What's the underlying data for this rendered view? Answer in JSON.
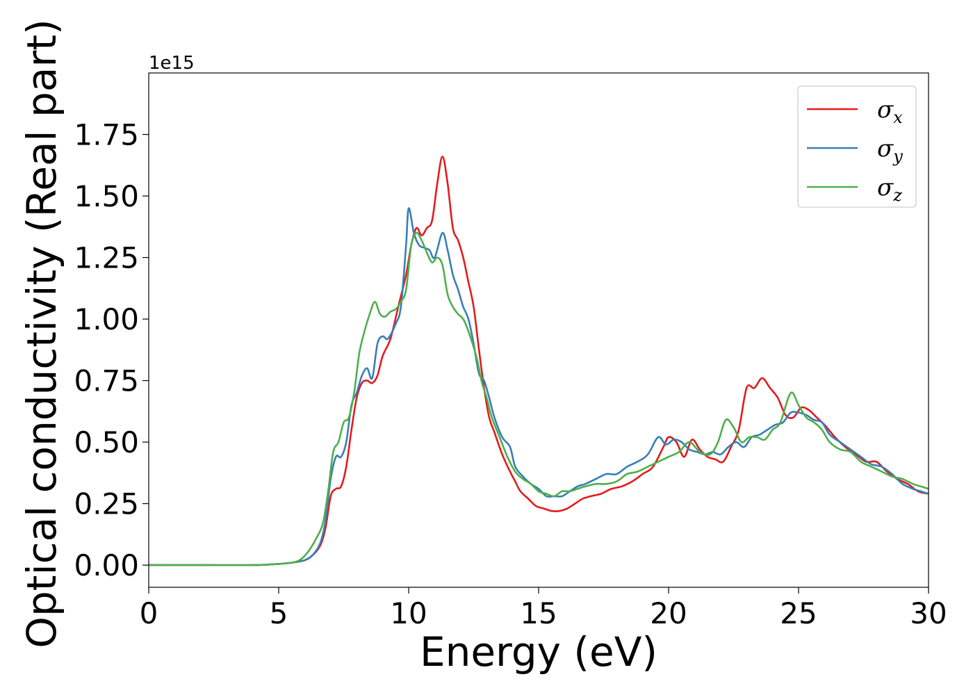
{
  "chart_data": {
    "type": "line",
    "xlabel": "Energy (eV)",
    "ylabel": "Optical conductivity (Real part)",
    "offset_text": "1e15",
    "xlim": [
      0,
      30
    ],
    "ylim": [
      -0.09,
      2.0
    ],
    "xticks": [
      0,
      5,
      10,
      15,
      20,
      25,
      30
    ],
    "xtick_labels": [
      "0",
      "5",
      "10",
      "15",
      "20",
      "25",
      "30"
    ],
    "yticks": [
      0,
      0.25,
      0.5,
      0.75,
      1.0,
      1.25,
      1.5,
      1.75
    ],
    "ytick_labels": [
      "0.00",
      "0.25",
      "0.50",
      "0.75",
      "1.00",
      "1.25",
      "1.50",
      "1.75"
    ],
    "grid": false,
    "legend_position": "top-right",
    "series": [
      {
        "name": "σ",
        "subscript": "x",
        "color": "#e41a1c",
        "points": [
          [
            0,
            0
          ],
          [
            2,
            0
          ],
          [
            4,
            0
          ],
          [
            5,
            0.005
          ],
          [
            5.5,
            0.01
          ],
          [
            6,
            0.02
          ],
          [
            6.3,
            0.04
          ],
          [
            6.6,
            0.08
          ],
          [
            6.8,
            0.15
          ],
          [
            7.0,
            0.28
          ],
          [
            7.2,
            0.31
          ],
          [
            7.4,
            0.32
          ],
          [
            7.6,
            0.4
          ],
          [
            7.8,
            0.55
          ],
          [
            8.0,
            0.68
          ],
          [
            8.2,
            0.74
          ],
          [
            8.4,
            0.75
          ],
          [
            8.6,
            0.74
          ],
          [
            8.8,
            0.77
          ],
          [
            9.0,
            0.85
          ],
          [
            9.3,
            0.92
          ],
          [
            9.6,
            1.05
          ],
          [
            9.9,
            1.18
          ],
          [
            10.1,
            1.3
          ],
          [
            10.3,
            1.37
          ],
          [
            10.5,
            1.34
          ],
          [
            10.7,
            1.37
          ],
          [
            10.9,
            1.4
          ],
          [
            11.1,
            1.55
          ],
          [
            11.3,
            1.66
          ],
          [
            11.5,
            1.55
          ],
          [
            11.7,
            1.37
          ],
          [
            11.9,
            1.32
          ],
          [
            12.1,
            1.25
          ],
          [
            12.3,
            1.15
          ],
          [
            12.5,
            1.05
          ],
          [
            12.7,
            0.88
          ],
          [
            12.9,
            0.72
          ],
          [
            13.1,
            0.6
          ],
          [
            13.3,
            0.54
          ],
          [
            13.6,
            0.45
          ],
          [
            13.9,
            0.38
          ],
          [
            14.1,
            0.34
          ],
          [
            14.3,
            0.3
          ],
          [
            14.6,
            0.27
          ],
          [
            14.9,
            0.24
          ],
          [
            15.2,
            0.23
          ],
          [
            15.5,
            0.22
          ],
          [
            15.8,
            0.22
          ],
          [
            16.1,
            0.23
          ],
          [
            16.4,
            0.25
          ],
          [
            16.7,
            0.27
          ],
          [
            17.0,
            0.28
          ],
          [
            17.4,
            0.29
          ],
          [
            17.8,
            0.31
          ],
          [
            18.2,
            0.32
          ],
          [
            18.6,
            0.34
          ],
          [
            19.0,
            0.37
          ],
          [
            19.4,
            0.4
          ],
          [
            19.8,
            0.48
          ],
          [
            20.0,
            0.52
          ],
          [
            20.3,
            0.5
          ],
          [
            20.6,
            0.44
          ],
          [
            20.9,
            0.51
          ],
          [
            21.2,
            0.47
          ],
          [
            21.5,
            0.44
          ],
          [
            21.8,
            0.43
          ],
          [
            22.1,
            0.42
          ],
          [
            22.4,
            0.48
          ],
          [
            22.7,
            0.55
          ],
          [
            23.0,
            0.72
          ],
          [
            23.3,
            0.72
          ],
          [
            23.6,
            0.76
          ],
          [
            23.9,
            0.72
          ],
          [
            24.2,
            0.68
          ],
          [
            24.5,
            0.61
          ],
          [
            24.8,
            0.6
          ],
          [
            25.1,
            0.64
          ],
          [
            25.4,
            0.63
          ],
          [
            25.7,
            0.6
          ],
          [
            26.0,
            0.57
          ],
          [
            26.4,
            0.52
          ],
          [
            26.8,
            0.48
          ],
          [
            27.2,
            0.45
          ],
          [
            27.6,
            0.42
          ],
          [
            28.0,
            0.42
          ],
          [
            28.4,
            0.38
          ],
          [
            28.8,
            0.35
          ],
          [
            29.2,
            0.33
          ],
          [
            29.6,
            0.3
          ],
          [
            30.0,
            0.29
          ]
        ]
      },
      {
        "name": "σ",
        "subscript": "y",
        "color": "#377eb8",
        "points": [
          [
            0,
            0
          ],
          [
            2,
            0
          ],
          [
            4,
            0
          ],
          [
            5,
            0.005
          ],
          [
            5.5,
            0.01
          ],
          [
            6,
            0.02
          ],
          [
            6.3,
            0.04
          ],
          [
            6.6,
            0.09
          ],
          [
            6.8,
            0.18
          ],
          [
            7.0,
            0.35
          ],
          [
            7.2,
            0.44
          ],
          [
            7.4,
            0.44
          ],
          [
            7.6,
            0.5
          ],
          [
            7.8,
            0.65
          ],
          [
            8.0,
            0.7
          ],
          [
            8.2,
            0.77
          ],
          [
            8.4,
            0.8
          ],
          [
            8.6,
            0.76
          ],
          [
            8.8,
            0.9
          ],
          [
            9.0,
            0.93
          ],
          [
            9.2,
            0.92
          ],
          [
            9.5,
            0.98
          ],
          [
            9.7,
            1.05
          ],
          [
            9.9,
            1.3
          ],
          [
            10.0,
            1.45
          ],
          [
            10.2,
            1.35
          ],
          [
            10.4,
            1.3
          ],
          [
            10.6,
            1.29
          ],
          [
            10.8,
            1.28
          ],
          [
            11.0,
            1.25
          ],
          [
            11.3,
            1.35
          ],
          [
            11.5,
            1.28
          ],
          [
            11.7,
            1.18
          ],
          [
            11.9,
            1.12
          ],
          [
            12.1,
            1.05
          ],
          [
            12.3,
            1.0
          ],
          [
            12.5,
            0.9
          ],
          [
            12.7,
            0.78
          ],
          [
            12.9,
            0.75
          ],
          [
            13.1,
            0.68
          ],
          [
            13.3,
            0.6
          ],
          [
            13.6,
            0.52
          ],
          [
            13.9,
            0.48
          ],
          [
            14.1,
            0.4
          ],
          [
            14.4,
            0.36
          ],
          [
            14.7,
            0.33
          ],
          [
            15.0,
            0.31
          ],
          [
            15.3,
            0.28
          ],
          [
            15.6,
            0.28
          ],
          [
            15.9,
            0.28
          ],
          [
            16.2,
            0.3
          ],
          [
            16.5,
            0.32
          ],
          [
            16.8,
            0.33
          ],
          [
            17.2,
            0.35
          ],
          [
            17.6,
            0.37
          ],
          [
            18.0,
            0.37
          ],
          [
            18.4,
            0.4
          ],
          [
            18.8,
            0.42
          ],
          [
            19.2,
            0.45
          ],
          [
            19.6,
            0.52
          ],
          [
            19.9,
            0.49
          ],
          [
            20.2,
            0.51
          ],
          [
            20.5,
            0.5
          ],
          [
            20.8,
            0.47
          ],
          [
            21.1,
            0.46
          ],
          [
            21.4,
            0.45
          ],
          [
            21.7,
            0.46
          ],
          [
            22.0,
            0.45
          ],
          [
            22.3,
            0.48
          ],
          [
            22.6,
            0.5
          ],
          [
            22.9,
            0.48
          ],
          [
            23.2,
            0.52
          ],
          [
            23.5,
            0.53
          ],
          [
            23.8,
            0.55
          ],
          [
            24.1,
            0.57
          ],
          [
            24.4,
            0.58
          ],
          [
            24.7,
            0.62
          ],
          [
            25.0,
            0.62
          ],
          [
            25.3,
            0.61
          ],
          [
            25.6,
            0.59
          ],
          [
            25.9,
            0.58
          ],
          [
            26.2,
            0.53
          ],
          [
            26.6,
            0.5
          ],
          [
            27.0,
            0.47
          ],
          [
            27.4,
            0.44
          ],
          [
            27.8,
            0.41
          ],
          [
            28.2,
            0.4
          ],
          [
            28.6,
            0.37
          ],
          [
            29.0,
            0.33
          ],
          [
            29.4,
            0.31
          ],
          [
            29.7,
            0.3
          ],
          [
            30.0,
            0.29
          ]
        ]
      },
      {
        "name": "σ",
        "subscript": "z",
        "color": "#4daf4a",
        "points": [
          [
            0,
            0
          ],
          [
            2,
            0
          ],
          [
            4,
            0
          ],
          [
            5,
            0.005
          ],
          [
            5.5,
            0.01
          ],
          [
            5.8,
            0.02
          ],
          [
            6.1,
            0.05
          ],
          [
            6.4,
            0.1
          ],
          [
            6.7,
            0.17
          ],
          [
            6.9,
            0.3
          ],
          [
            7.1,
            0.46
          ],
          [
            7.3,
            0.5
          ],
          [
            7.5,
            0.58
          ],
          [
            7.7,
            0.6
          ],
          [
            7.9,
            0.7
          ],
          [
            8.1,
            0.86
          ],
          [
            8.3,
            0.95
          ],
          [
            8.5,
            1.02
          ],
          [
            8.7,
            1.07
          ],
          [
            8.9,
            1.02
          ],
          [
            9.1,
            1.01
          ],
          [
            9.3,
            1.03
          ],
          [
            9.5,
            1.04
          ],
          [
            9.7,
            1.07
          ],
          [
            9.9,
            1.12
          ],
          [
            10.1,
            1.3
          ],
          [
            10.3,
            1.35
          ],
          [
            10.5,
            1.32
          ],
          [
            10.7,
            1.27
          ],
          [
            10.9,
            1.23
          ],
          [
            11.1,
            1.25
          ],
          [
            11.3,
            1.22
          ],
          [
            11.5,
            1.1
          ],
          [
            11.7,
            1.05
          ],
          [
            11.9,
            1.02
          ],
          [
            12.1,
            1.0
          ],
          [
            12.3,
            0.95
          ],
          [
            12.6,
            0.85
          ],
          [
            12.8,
            0.75
          ],
          [
            13.0,
            0.68
          ],
          [
            13.2,
            0.6
          ],
          [
            13.5,
            0.52
          ],
          [
            13.8,
            0.44
          ],
          [
            14.1,
            0.38
          ],
          [
            14.4,
            0.35
          ],
          [
            14.7,
            0.33
          ],
          [
            15.0,
            0.3
          ],
          [
            15.3,
            0.29
          ],
          [
            15.6,
            0.28
          ],
          [
            15.9,
            0.3
          ],
          [
            16.2,
            0.3
          ],
          [
            16.5,
            0.31
          ],
          [
            16.8,
            0.32
          ],
          [
            17.2,
            0.33
          ],
          [
            17.6,
            0.33
          ],
          [
            18.0,
            0.34
          ],
          [
            18.4,
            0.37
          ],
          [
            18.8,
            0.38
          ],
          [
            19.2,
            0.4
          ],
          [
            19.6,
            0.42
          ],
          [
            20.0,
            0.44
          ],
          [
            20.4,
            0.46
          ],
          [
            20.8,
            0.5
          ],
          [
            21.2,
            0.46
          ],
          [
            21.6,
            0.45
          ],
          [
            21.9,
            0.5
          ],
          [
            22.2,
            0.59
          ],
          [
            22.5,
            0.56
          ],
          [
            22.8,
            0.5
          ],
          [
            23.1,
            0.52
          ],
          [
            23.4,
            0.52
          ],
          [
            23.7,
            0.51
          ],
          [
            24.0,
            0.55
          ],
          [
            24.3,
            0.58
          ],
          [
            24.7,
            0.7
          ],
          [
            25.0,
            0.65
          ],
          [
            25.3,
            0.6
          ],
          [
            25.6,
            0.58
          ],
          [
            25.9,
            0.55
          ],
          [
            26.2,
            0.5
          ],
          [
            26.6,
            0.47
          ],
          [
            27.0,
            0.46
          ],
          [
            27.4,
            0.42
          ],
          [
            27.8,
            0.4
          ],
          [
            28.2,
            0.38
          ],
          [
            28.6,
            0.36
          ],
          [
            29.0,
            0.35
          ],
          [
            29.4,
            0.33
          ],
          [
            29.7,
            0.32
          ],
          [
            30.0,
            0.31
          ]
        ]
      }
    ]
  }
}
